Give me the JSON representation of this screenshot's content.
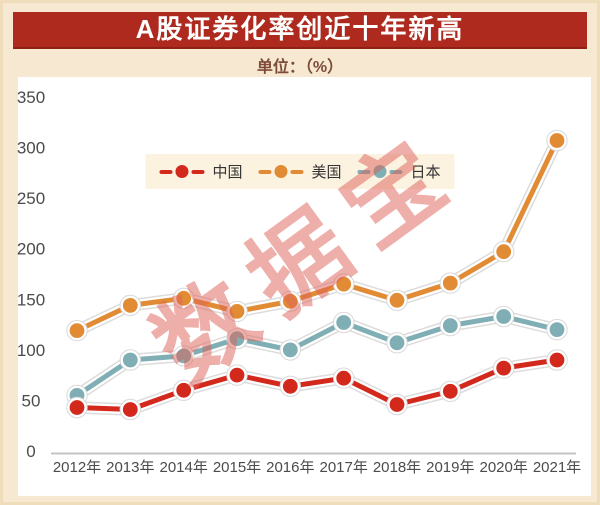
{
  "page": {
    "title": "A股证券化率创近十年新高",
    "subtitle": "单位：（%）",
    "watermark": "数据宝",
    "colors": {
      "banner": "#ae2a1e",
      "background": "#f7e9d1",
      "panel": "#ffffff",
      "legend_background": "#fbf2e0",
      "watermark": "#de5f55",
      "axis_text": "#4b4b4b",
      "axis_line": "#c3c3c3"
    }
  },
  "chart_data": {
    "type": "line",
    "title": "A股证券化率创近十年新高",
    "unit_label": "单位：（%）",
    "categories": [
      "2012年",
      "2013年",
      "2014年",
      "2015年",
      "2016年",
      "2017年",
      "2018年",
      "2019年",
      "2020年",
      "2021年"
    ],
    "series": [
      {
        "name": "中国",
        "color": "#d3291d",
        "values": [
          43,
          41,
          60,
          75,
          64,
          72,
          46,
          59,
          82,
          90
        ]
      },
      {
        "name": "美国",
        "color": "#e28b35",
        "values": [
          119,
          144,
          151,
          138,
          148,
          165,
          149,
          166,
          197,
          307
        ]
      },
      {
        "name": "日本",
        "color": "#7faeb5",
        "values": [
          55,
          90,
          94,
          111,
          100,
          127,
          107,
          124,
          133,
          120
        ]
      }
    ],
    "ylim": [
      0,
      350
    ],
    "yticks": [
      0,
      50,
      100,
      150,
      200,
      250,
      300,
      350
    ],
    "grid": false,
    "legend_position": "top-center"
  }
}
